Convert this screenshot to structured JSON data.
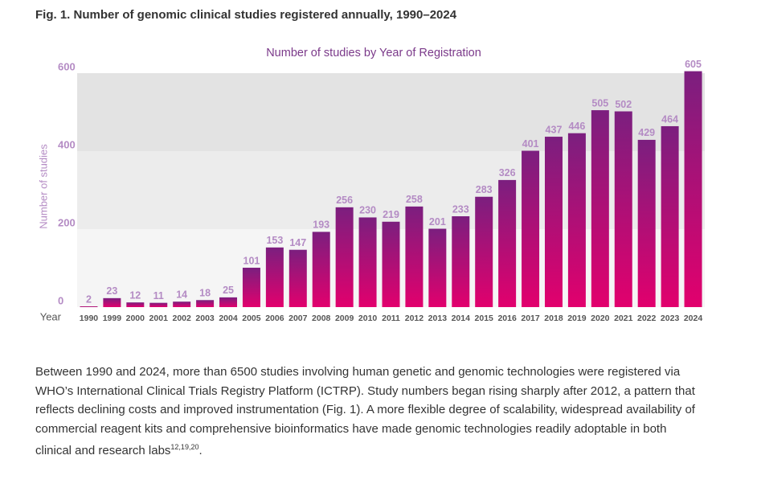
{
  "figure_title": "Fig. 1. Number of genomic clinical studies registered annually, 1990–2024",
  "chart_data": {
    "type": "bar",
    "title": "Number of studies by Year of Registration",
    "x_label": "Year",
    "y_label": "Number of studies",
    "categories": [
      "1990",
      "1999",
      "2000",
      "2001",
      "2002",
      "2003",
      "2004",
      "2005",
      "2006",
      "2007",
      "2008",
      "2009",
      "2010",
      "2011",
      "2012",
      "2013",
      "2014",
      "2015",
      "2016",
      "2017",
      "2018",
      "2019",
      "2020",
      "2021",
      "2022",
      "2023",
      "2024"
    ],
    "values": [
      2,
      23,
      12,
      11,
      14,
      18,
      25,
      101,
      153,
      147,
      193,
      256,
      230,
      219,
      258,
      201,
      233,
      283,
      326,
      401,
      437,
      446,
      505,
      502,
      429,
      464,
      605
    ],
    "color": [
      "#7b1f7f",
      "#e2006d"
    ],
    "ylim": [
      0,
      600
    ],
    "yticks": [
      0,
      200,
      400,
      600
    ],
    "band_colors": [
      "#f5f5f5",
      "#ececec",
      "#e3e3e3"
    ]
  },
  "paragraph": {
    "text": "Between 1990 and 2024, more than 6500 studies involving human genetic and genomic technologies were registered via WHO’s International Clinical Trials Registry Platform (ICTRP). Study numbers began rising sharply after 2012, a pattern that reflects declining costs and improved instrumentation (Fig. 1). A more flexible degree of scalability, widespread availability of commercial reagent kits and comprehensive bioinformatics have made genomic technologies readily adoptable in both clinical and research labs",
    "superscript": "12,19,20",
    "end": "."
  }
}
